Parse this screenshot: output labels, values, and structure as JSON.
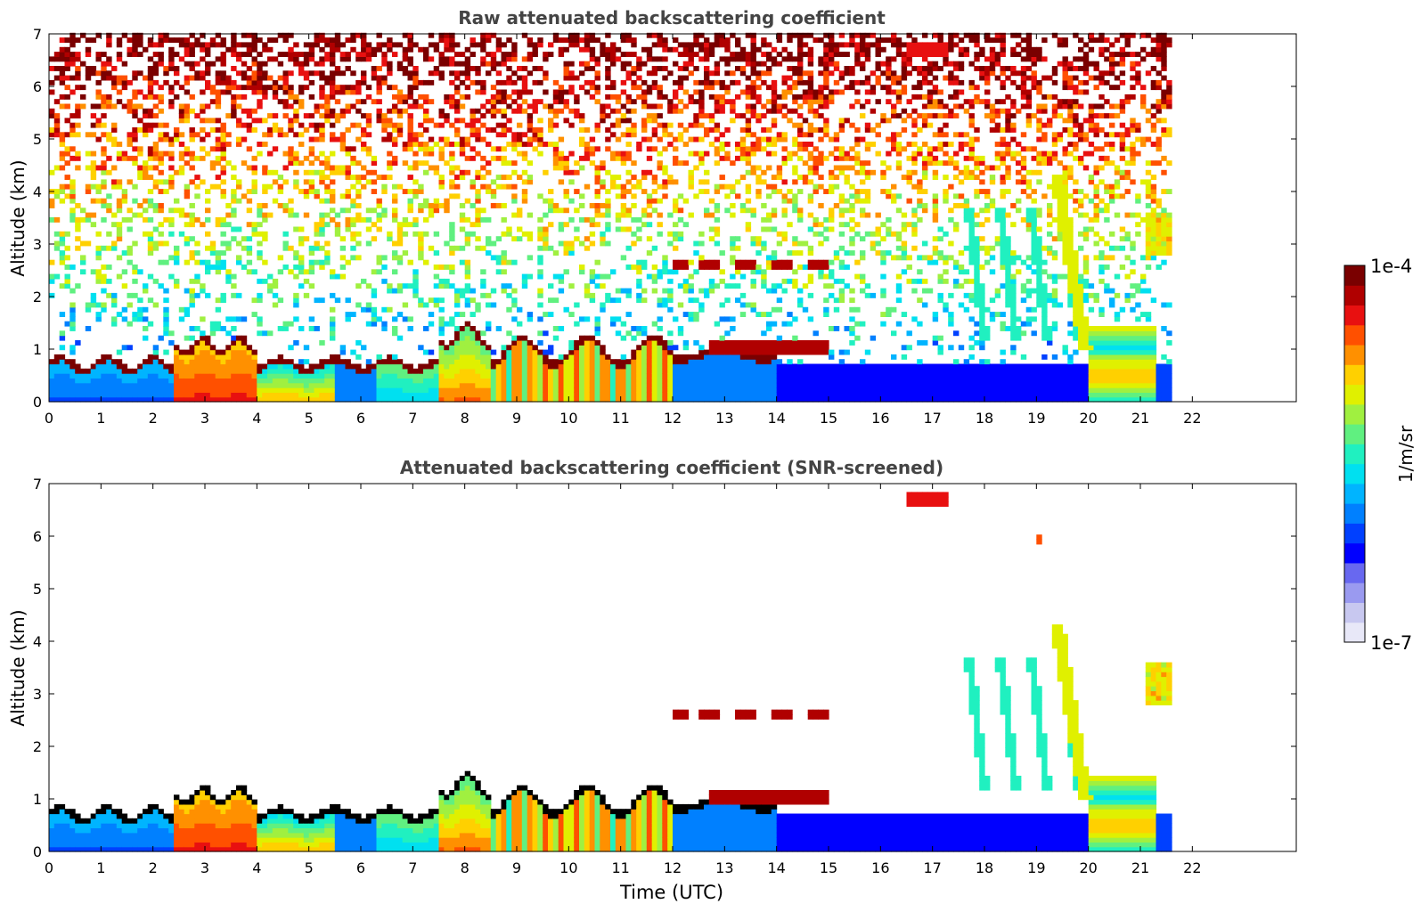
{
  "chart_data": [
    {
      "type": "heatmap",
      "title": "Raw attenuated backscattering coefficient",
      "xlabel": "",
      "ylabel": "Altitude (km)",
      "xlim": [
        0,
        24
      ],
      "ylim": [
        0,
        7
      ],
      "x_ticks": [
        0,
        1,
        2,
        3,
        4,
        5,
        6,
        7,
        8,
        9,
        10,
        11,
        12,
        13,
        14,
        15,
        16,
        17,
        18,
        19,
        20,
        21,
        22
      ],
      "y_ticks": [
        0,
        1,
        2,
        3,
        4,
        5,
        6,
        7
      ],
      "data_extent_hours": [
        0,
        21.65
      ],
      "screened": false,
      "features": [
        {
          "kind": "boundary_layer",
          "x": [
            0,
            2.4
          ],
          "top_km": 0.7,
          "level": "medium"
        },
        {
          "kind": "boundary_layer",
          "x": [
            2.4,
            4.0
          ],
          "top_km": 1.1,
          "level": "high"
        },
        {
          "kind": "boundary_layer",
          "x": [
            4.0,
            7.5
          ],
          "top_km": 0.7,
          "level": "medium-high"
        },
        {
          "kind": "boundary_layer",
          "x": [
            7.5,
            12.0
          ],
          "top_km": 1.2,
          "level": "high"
        },
        {
          "kind": "boundary_layer",
          "x": [
            12.0,
            14.0
          ],
          "top_km": 0.9,
          "level": "medium"
        },
        {
          "kind": "cloud_layer",
          "x": [
            12.0,
            15.2
          ],
          "y_km": 2.6,
          "level": "very-high"
        },
        {
          "kind": "cloud_layer",
          "x": [
            12.7,
            15.0
          ],
          "y_km": 1.0,
          "level": "very-high"
        },
        {
          "kind": "cloud_layer",
          "x": [
            16.5,
            17.3
          ],
          "y_km": 6.7,
          "level": "very-high"
        },
        {
          "kind": "cloud_layer",
          "x": [
            19.0,
            19.1
          ],
          "y_km": 5.9,
          "level": "very-high"
        },
        {
          "kind": "fall_streak",
          "x": [
            19.4,
            20.1
          ],
          "y_km": [
            4.3,
            1.0
          ],
          "level": "high"
        },
        {
          "kind": "cloud_column",
          "x": [
            20.0,
            21.3
          ],
          "y_km": [
            0,
            1.4
          ],
          "level": "medium-high"
        },
        {
          "kind": "cloud_layer",
          "x": [
            21.1,
            21.65
          ],
          "y_km": 3.0,
          "level": "high"
        }
      ]
    },
    {
      "type": "heatmap",
      "title": "Attenuated backscattering coefficient (SNR-screened)",
      "xlabel": "Time (UTC)",
      "ylabel": "Altitude (km)",
      "xlim": [
        0,
        24
      ],
      "ylim": [
        0,
        7
      ],
      "x_ticks": [
        0,
        1,
        2,
        3,
        4,
        5,
        6,
        7,
        8,
        9,
        10,
        11,
        12,
        13,
        14,
        15,
        16,
        17,
        18,
        19,
        20,
        21,
        22
      ],
      "y_ticks": [
        0,
        1,
        2,
        3,
        4,
        5,
        6,
        7
      ],
      "data_extent_hours": [
        0,
        21.65
      ],
      "screened": true
    }
  ],
  "colorbar": {
    "min_label": "1e-7",
    "max_label": "1e-4",
    "label": "1/m/sr",
    "scale": "log",
    "colors": [
      "#e8e8f8",
      "#c8c8f0",
      "#9a9af0",
      "#6868f0",
      "#0000ff",
      "#0040ff",
      "#0080ff",
      "#00b4ff",
      "#00e0f0",
      "#20f0c0",
      "#60f080",
      "#a0f040",
      "#e0f000",
      "#ffd000",
      "#ff9000",
      "#ff5000",
      "#e81010",
      "#b00000",
      "#7a0000"
    ]
  }
}
